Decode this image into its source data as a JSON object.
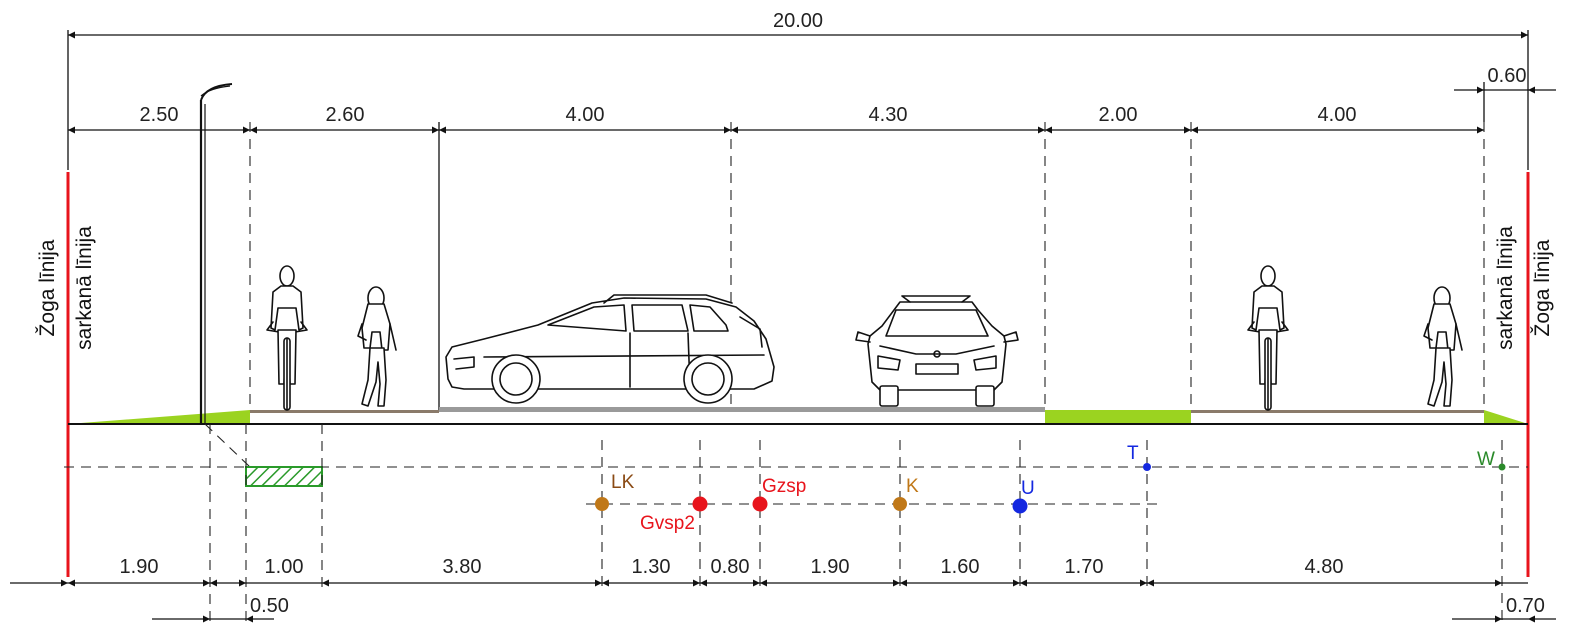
{
  "top_dimensions": {
    "total": "20.00",
    "right_offset": "0.60",
    "segments": [
      "2.50",
      "2.60",
      "4.00",
      "4.30",
      "2.00",
      "4.00"
    ]
  },
  "bottom_dimensions": {
    "segments": [
      "1.90",
      "1.00",
      "3.80",
      "1.30",
      "0.80",
      "1.90",
      "1.60",
      "1.70",
      "4.80"
    ],
    "left_offset": "0.50",
    "right_offset": "0.70"
  },
  "boundary_labels": {
    "left_fence": "Žoga līnija",
    "left_red": "sarkanā līnija",
    "right_red": "sarkanā līnija",
    "right_fence": "Žoga līnija"
  },
  "utilities": [
    {
      "code": "LK",
      "color": "#a0601a"
    },
    {
      "code": "Gvsp2",
      "color": "#e8141c"
    },
    {
      "code": "Gzsp",
      "color": "#e8141c"
    },
    {
      "code": "K",
      "color": "#c07818"
    },
    {
      "code": "U",
      "color": "#1428e0"
    },
    {
      "code": "T",
      "color": "#1428e0"
    },
    {
      "code": "W",
      "color": "#2a8a2a"
    }
  ],
  "colors": {
    "red_line": "#e8141c",
    "grass": "#9bd320",
    "pavement": "#808080",
    "cable_hatch": "#2a9a2a"
  },
  "icons": [
    "street-lamp-icon",
    "cyclist-icon",
    "pedestrian-icon",
    "car-side-icon",
    "car-front-icon"
  ]
}
